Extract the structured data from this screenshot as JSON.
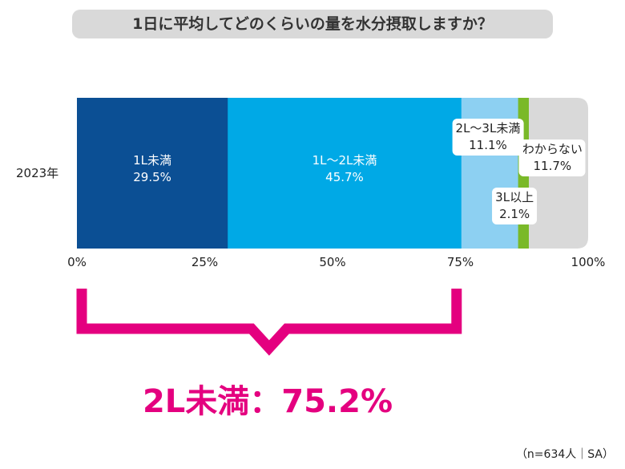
{
  "chart_data": {
    "type": "bar",
    "orientation": "horizontal-stacked",
    "title": "1日に平均してどのくらいの量を水分摂取しますか？",
    "categories": [
      "2023年"
    ],
    "series": [
      {
        "name": "1L未満",
        "values": [
          29.5
        ],
        "value_label": "29.5%",
        "color": "#0b4f94"
      },
      {
        "name": "1L〜2L未満",
        "values": [
          45.7
        ],
        "value_label": "45.7%",
        "color": "#00a9e6"
      },
      {
        "name": "2L〜3L未満",
        "values": [
          11.1
        ],
        "value_label": "11.1%",
        "color": "#8dd0f2"
      },
      {
        "name": "3L以上",
        "values": [
          2.1
        ],
        "value_label": "2.1%",
        "color": "#7ab929"
      },
      {
        "name": "わからない",
        "values": [
          11.7
        ],
        "value_label": "11.7%",
        "color": "#d9d9d9"
      }
    ],
    "xlim": [
      0,
      100
    ],
    "x_ticks": [
      "0%",
      "25%",
      "50%",
      "75%",
      "100%"
    ],
    "grid": false,
    "annotation": "2L未満：75.2%",
    "annotation_color": "#e4007f",
    "note": "（n=634人｜SA）"
  }
}
